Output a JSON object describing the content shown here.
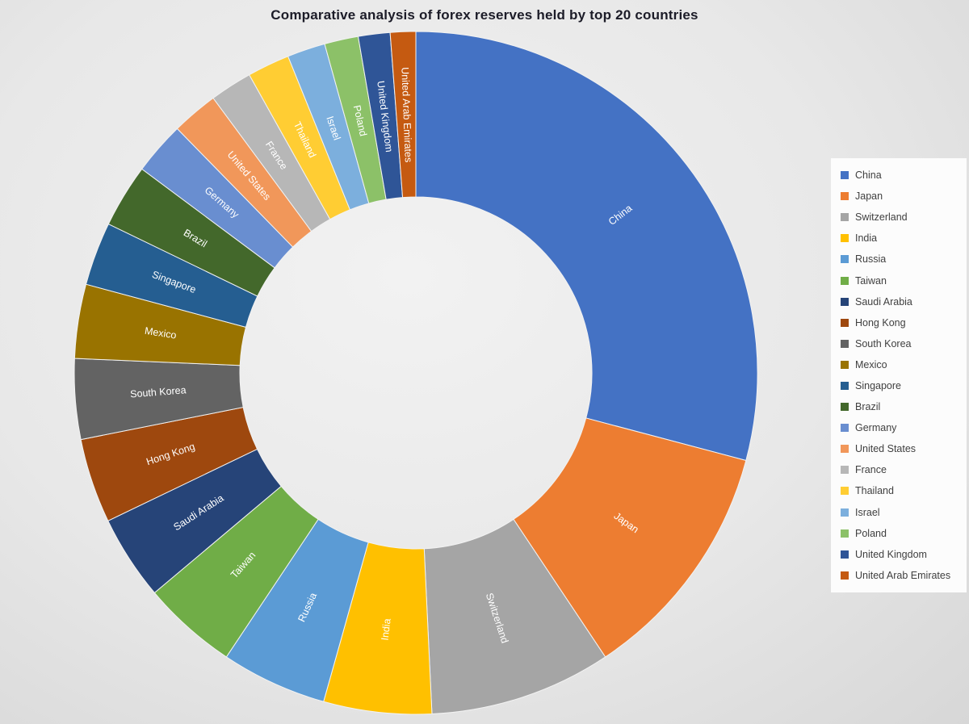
{
  "page": {
    "background_color": "#e7e7e7",
    "legend_panel_color": "#fcfcfc",
    "title_color": "#1c1c28",
    "slice_label_color": "#ffffff"
  },
  "chart_data": {
    "type": "pie",
    "subtype": "donut",
    "title": "Comparative analysis of forex reserves held by top 20 countries",
    "legend_position": "right",
    "direction": "clockwise",
    "start_angle_deg": 0,
    "inner_radius_ratio": 0.52,
    "data_labels": "category names printed on slices, white, rotated radially",
    "value_unit": "percent share of whole donut (estimated from slice angles; no numeric values printed on chart)",
    "categories": [
      "China",
      "Japan",
      "Switzerland",
      "India",
      "Russia",
      "Taiwan",
      "Saudi Arabia",
      "Hong Kong",
      "South Korea",
      "Mexico",
      "Singapore",
      "Brazil",
      "Germany",
      "United States",
      "France",
      "Thailand",
      "Israel",
      "Poland",
      "United Kingdom",
      "United Arab Emirates"
    ],
    "values": [
      29.1,
      11.5,
      8.6,
      5.1,
      5.0,
      4.5,
      4.0,
      4.0,
      3.8,
      3.5,
      3.0,
      3.0,
      2.5,
      2.2,
      2.0,
      2.0,
      1.8,
      1.6,
      1.5,
      1.2
    ],
    "colors": [
      "#4472C4",
      "#ED7D31",
      "#A5A5A5",
      "#FFC000",
      "#5B9BD5",
      "#70AD47",
      "#264478",
      "#9E480E",
      "#636363",
      "#997300",
      "#255E91",
      "#43682B",
      "#698ED0",
      "#F1975A",
      "#B7B7B7",
      "#FFCD33",
      "#7CAFDD",
      "#8CC168",
      "#2F5597",
      "#C55A11"
    ]
  }
}
